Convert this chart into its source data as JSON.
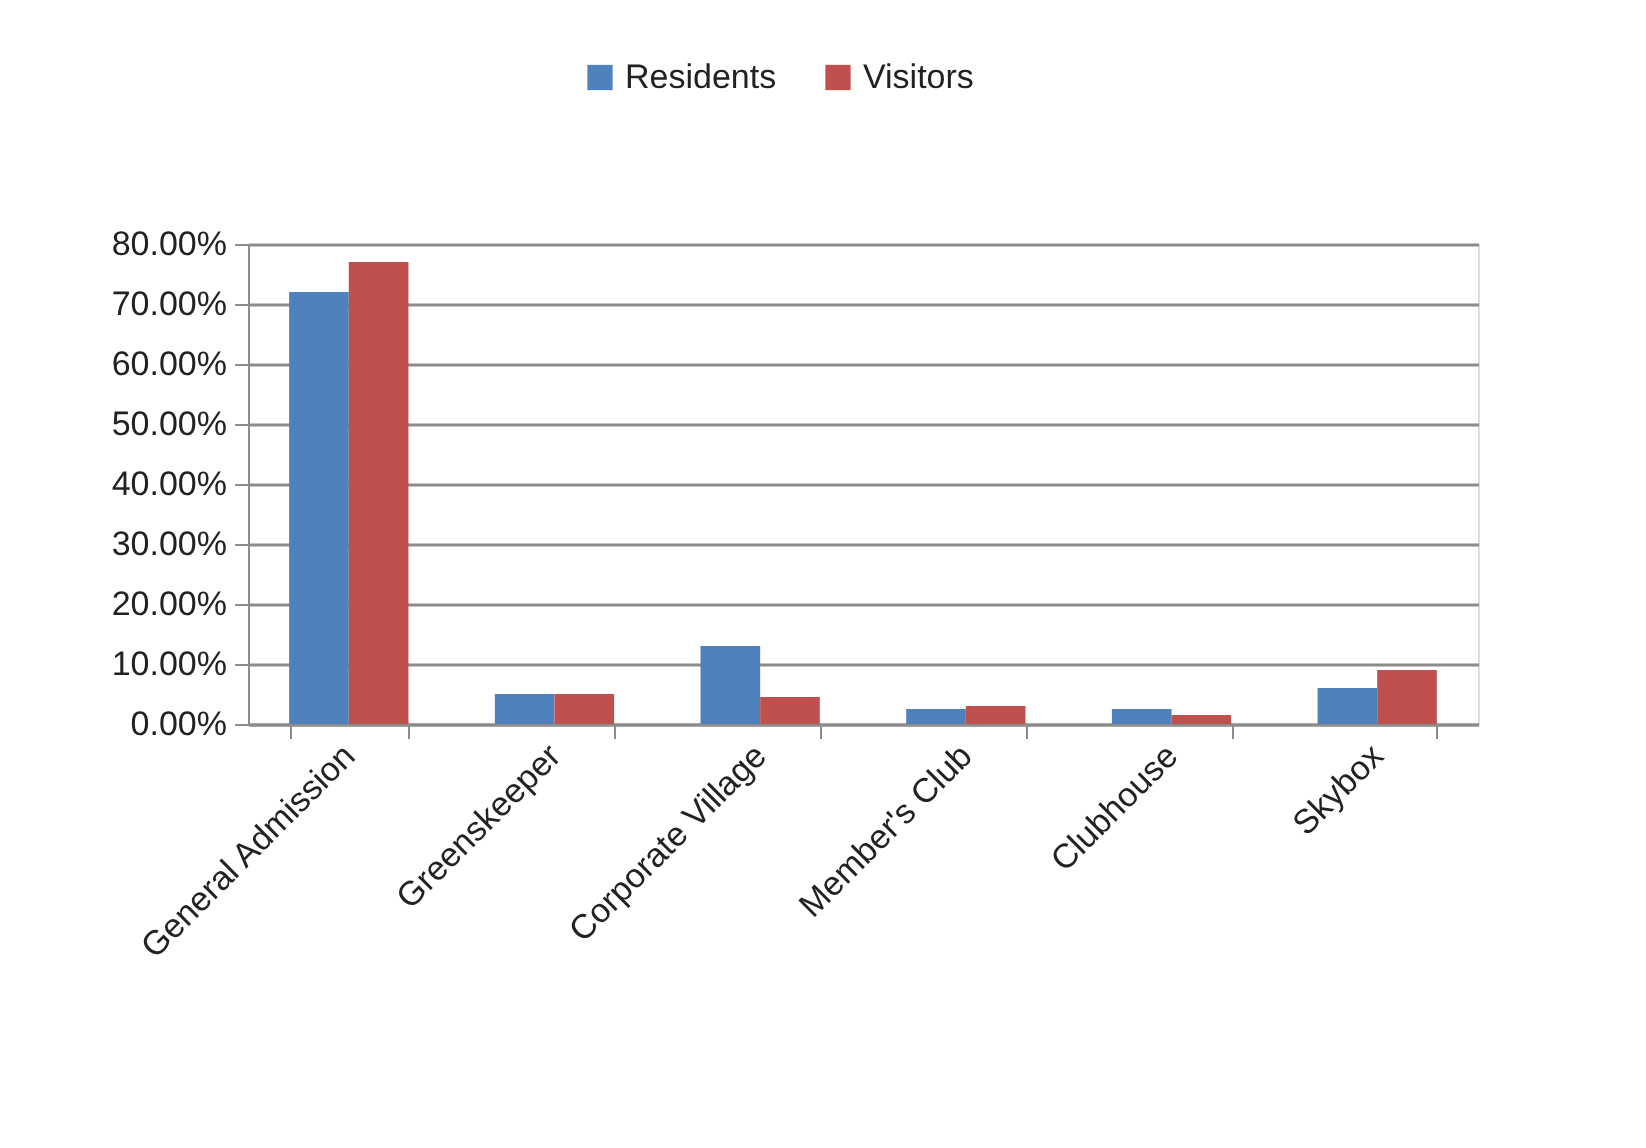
{
  "chart_data": {
    "type": "bar",
    "categories": [
      "General Admission",
      "Greenskeeper",
      "Corporate Village",
      "Member's Club",
      "Clubhouse",
      "Skybox"
    ],
    "series": [
      {
        "name": "Residents",
        "color": "#4f81bd",
        "values": [
          72,
          5,
          13,
          2.5,
          2.5,
          6
        ]
      },
      {
        "name": "Visitors",
        "color": "#c0504d",
        "values": [
          77,
          5,
          4.5,
          3,
          1.5,
          9
        ]
      }
    ],
    "ylim": [
      0,
      80
    ],
    "yticks": [
      {
        "value": 0,
        "label": "0.00%"
      },
      {
        "value": 10,
        "label": "10.00%"
      },
      {
        "value": 20,
        "label": "20.00%"
      },
      {
        "value": 30,
        "label": "30.00%"
      },
      {
        "value": 40,
        "label": "40.00%"
      },
      {
        "value": 50,
        "label": "50.00%"
      },
      {
        "value": 60,
        "label": "60.00%"
      },
      {
        "value": 70,
        "label": "70.00%"
      },
      {
        "value": 80,
        "label": "80.00%"
      }
    ],
    "grid": "y",
    "legend": "top"
  }
}
